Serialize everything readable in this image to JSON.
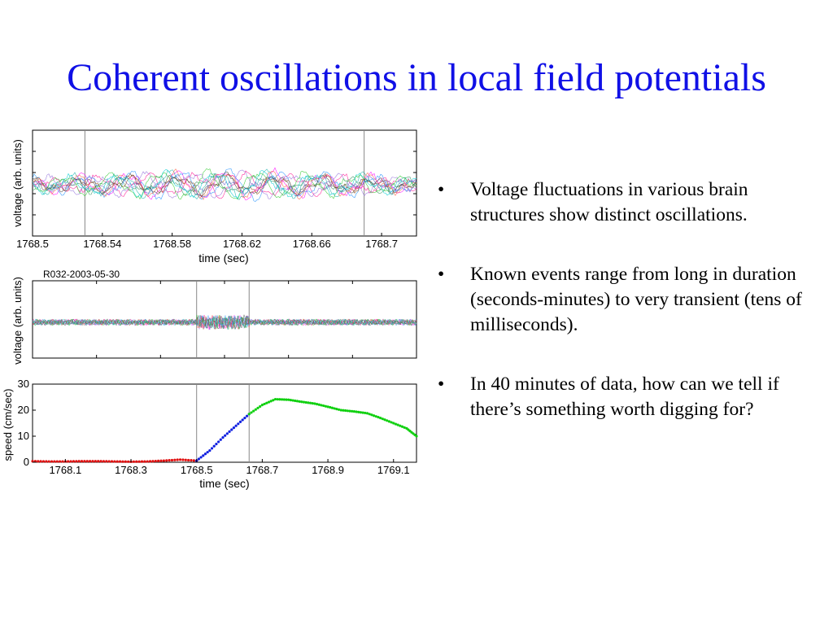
{
  "slide": {
    "title": "Coherent oscillations in local field potentials",
    "bullet_glyph": "•",
    "bullets": [
      "Voltage fluctuations in various brain structures show distinct oscillations.",
      "Known events range from long in duration (seconds-minutes) to very transient (tens of milliseconds).",
      "In 40 minutes of data, how can we tell if there’s something worth digging for?"
    ]
  },
  "chart_data": [
    {
      "type": "line",
      "xlabel": "time (sec)",
      "ylabel": "voltage (arb. units)",
      "title": "",
      "xlim": [
        1768.5,
        1768.72
      ],
      "x_ticks": [
        "1768.5",
        "1768.54",
        "1768.58",
        "1768.62",
        "1768.66",
        "1768.7"
      ],
      "x_tick_values": [
        1768.5,
        1768.54,
        1768.58,
        1768.62,
        1768.66,
        1768.7
      ],
      "markers_x": [
        1768.53,
        1768.69
      ],
      "n_traces": 12,
      "grid": false
    },
    {
      "type": "line",
      "title": "R032-2003-05-30",
      "ylabel": "voltage (arb. units)",
      "xlabel": "",
      "xlim": [
        1768.0,
        1769.17
      ],
      "markers_x": [
        1768.5,
        1768.66
      ],
      "n_traces": 12,
      "grid": false
    },
    {
      "type": "scatter",
      "xlabel": "time (sec)",
      "ylabel": "speed (cm/sec)",
      "title": "",
      "xlim": [
        1768.0,
        1769.17
      ],
      "ylim": [
        0,
        30
      ],
      "x_ticks": [
        "1768.1",
        "1768.3",
        "1768.5",
        "1768.7",
        "1768.9",
        "1769.1"
      ],
      "x_tick_values": [
        1768.1,
        1768.3,
        1768.5,
        1768.7,
        1768.9,
        1769.1
      ],
      "y_ticks": [
        "0",
        "10",
        "20",
        "30"
      ],
      "y_tick_values": [
        0,
        10,
        20,
        30
      ],
      "markers_x": [
        1768.5,
        1768.66
      ],
      "series": [
        {
          "color": "#e01010",
          "x": [
            1768.0,
            1768.05,
            1768.1,
            1768.15,
            1768.2,
            1768.25,
            1768.3,
            1768.35,
            1768.4,
            1768.45,
            1768.5
          ],
          "y": [
            0.4,
            0.3,
            0.3,
            0.4,
            0.4,
            0.3,
            0.2,
            0.3,
            0.6,
            1.0,
            0.6
          ]
        },
        {
          "color": "#1020e0",
          "x": [
            1768.5,
            1768.54,
            1768.58,
            1768.62,
            1768.66
          ],
          "y": [
            0.6,
            4.5,
            9.5,
            14.0,
            18.5
          ]
        },
        {
          "color": "#10d010",
          "x": [
            1768.66,
            1768.7,
            1768.74,
            1768.78,
            1768.82,
            1768.86,
            1768.9,
            1768.94,
            1768.98,
            1769.02,
            1769.06,
            1769.1,
            1769.14,
            1769.17
          ],
          "y": [
            18.5,
            22.0,
            24.2,
            24.0,
            23.2,
            22.5,
            21.3,
            20.0,
            19.5,
            18.8,
            17.0,
            15.0,
            13.0,
            10.0
          ]
        }
      ],
      "grid": false
    }
  ]
}
